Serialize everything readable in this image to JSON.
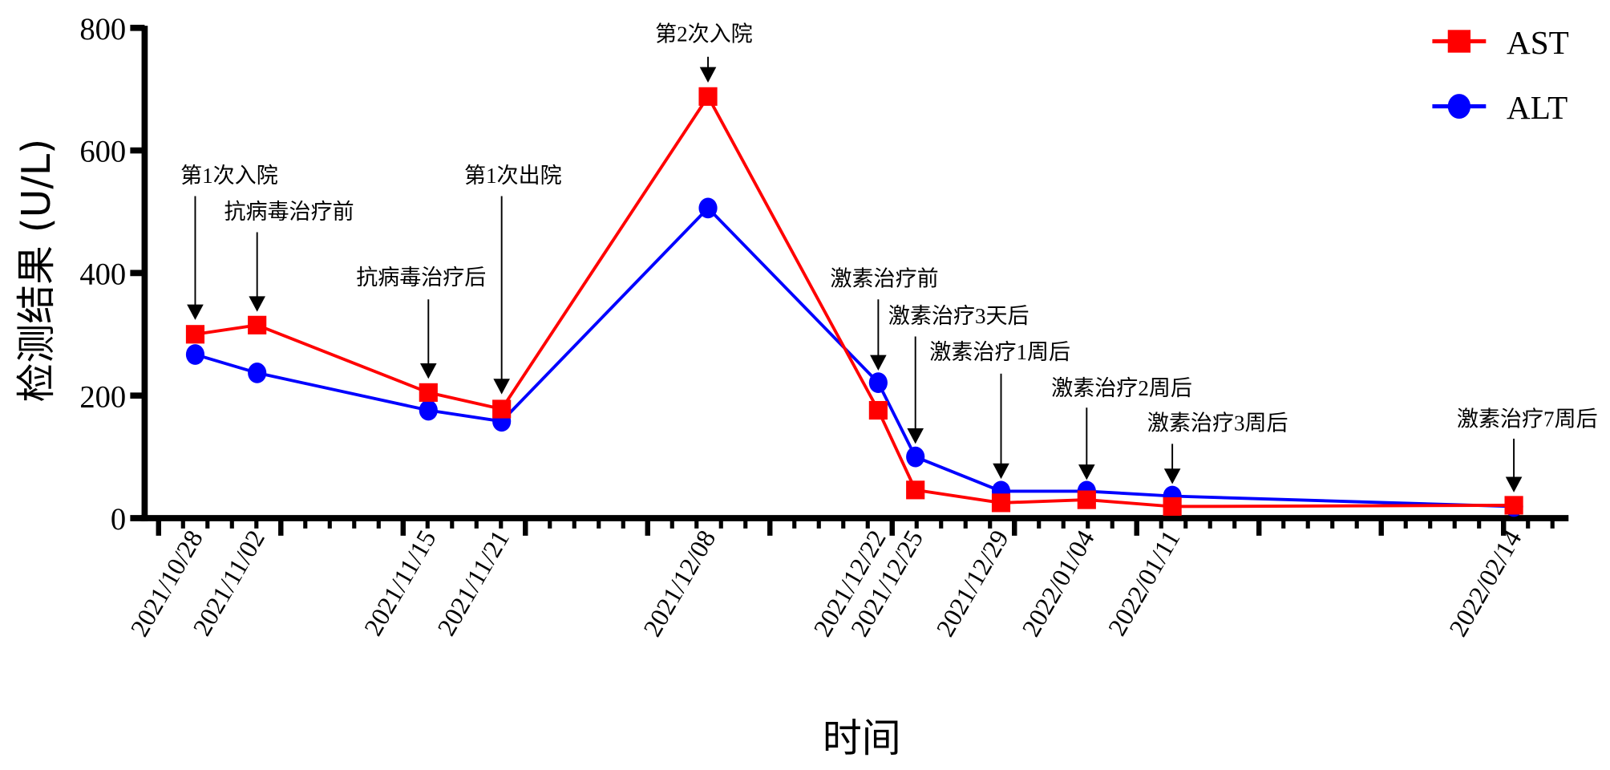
{
  "chart_data": {
    "type": "line",
    "title": "",
    "xlabel": "时间",
    "ylabel": "检测结果 (U/L)",
    "ylim": [
      0,
      800
    ],
    "yticks": [
      "0",
      "200",
      "400",
      "600",
      "800"
    ],
    "x": [
      "2021/10/28",
      "2021/11/02",
      "2021/11/15",
      "2021/11/21",
      "2021/12/08",
      "2021/12/22",
      "2021/12/25",
      "2021/12/29",
      "2022/01/04",
      "2022/01/11",
      "2022/02/14"
    ],
    "series": [
      {
        "name": "AST",
        "color": "#ff0000",
        "marker": "square",
        "values": [
          300,
          315,
          205,
          178,
          688,
          176,
          46,
          25,
          30,
          19,
          21
        ]
      },
      {
        "name": "ALT",
        "color": "#0000ff",
        "marker": "circle",
        "values": [
          267,
          237,
          176,
          158,
          506,
          221,
          100,
          44,
          44,
          36,
          19
        ]
      }
    ],
    "annotations": [
      "第1次入院",
      "抗病毒治疗前",
      "抗病毒治疗后",
      "第1次出院",
      "第2次入院",
      "激素治疗前",
      "激素治疗3天后",
      "激素治疗1周后",
      "激素治疗2周后",
      "激素治疗3周后",
      "激素治疗7周后"
    ],
    "legend": "top-right",
    "grid": false
  }
}
